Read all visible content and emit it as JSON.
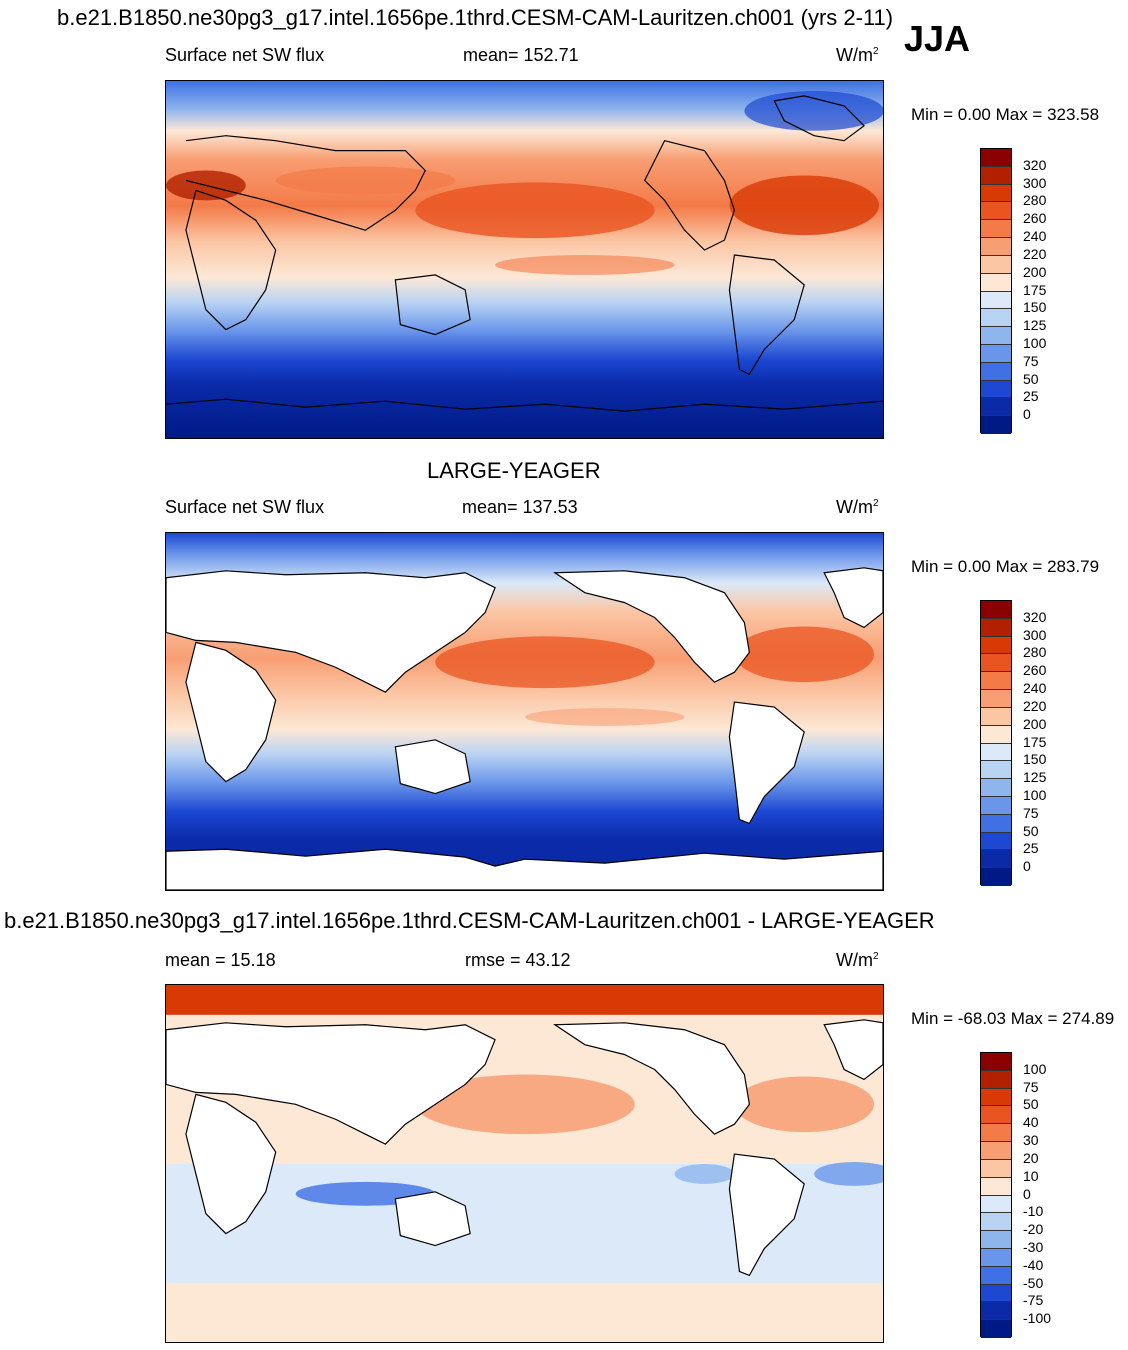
{
  "header": {
    "title": "b.e21.B1850.ne30pg3_g17.intel.1656pe.1thrd.CESM-CAM-Lauritzen.ch001 (yrs 2-11)",
    "season": "JJA"
  },
  "panel1": {
    "variable": "Surface net SW flux",
    "stat": "mean= 152.71",
    "units_base": "W/m",
    "units_exp": "2",
    "minmax": "Min =    0.00 Max = 323.58",
    "colorbar_labels": [
      "320",
      "300",
      "280",
      "260",
      "240",
      "220",
      "200",
      "175",
      "150",
      "125",
      "100",
      "75",
      "50",
      "25",
      "0"
    ]
  },
  "panel2": {
    "title": "LARGE-YEAGER",
    "variable": "Surface net SW flux",
    "stat": "mean= 137.53",
    "units_base": "W/m",
    "units_exp": "2",
    "minmax": "Min =    0.00 Max = 283.79",
    "colorbar_labels": [
      "320",
      "300",
      "280",
      "260",
      "240",
      "220",
      "200",
      "175",
      "150",
      "125",
      "100",
      "75",
      "50",
      "25",
      "0"
    ]
  },
  "panel3": {
    "title": "b.e21.B1850.ne30pg3_g17.intel.1656pe.1thrd.CESM-CAM-Lauritzen.ch001 - LARGE-YEAGER",
    "stat_left": "mean =  15.18",
    "stat_mid": "rmse =  43.12",
    "units_base": "W/m",
    "units_exp": "2",
    "minmax": "Min = -68.03 Max = 274.89",
    "colorbar_labels": [
      "100",
      "75",
      "50",
      "40",
      "30",
      "20",
      "10",
      "0",
      "-10",
      "-20",
      "-30",
      "-40",
      "-50",
      "-75",
      "-100"
    ]
  },
  "colors": {
    "abs_scale": [
      "#8b0000",
      "#b22000",
      "#d93a05",
      "#ea5420",
      "#f47a48",
      "#f89e73",
      "#fbc6a4",
      "#fde8d6",
      "#dce9f8",
      "#b9d3f3",
      "#8fb5ed",
      "#6a96ea",
      "#3f70e4",
      "#1c48d2",
      "#0a2aa8",
      "#001a85"
    ],
    "diff_scale": [
      "#8b0000",
      "#b22000",
      "#d93a05",
      "#ea5420",
      "#f47a48",
      "#f89e73",
      "#fbc6a4",
      "#fde8d6",
      "#dce9f8",
      "#b9d3f3",
      "#8fb5ed",
      "#6a96ea",
      "#3f70e4",
      "#1c48d2",
      "#0a2aa8",
      "#001a85"
    ]
  },
  "chart_data": [
    {
      "type": "heatmap",
      "title": "b.e21.B1850.ne30pg3_g17.intel.1656pe.1thrd.CESM-CAM-Lauritzen.ch001 (yrs 2-11)",
      "variable": "Surface net SW flux",
      "season": "JJA",
      "units": "W/m2",
      "mean": 152.71,
      "min": 0.0,
      "max": 323.58,
      "contour_levels": [
        0,
        25,
        50,
        75,
        100,
        125,
        150,
        175,
        200,
        220,
        240,
        260,
        280,
        300,
        320
      ],
      "land_masked": false
    },
    {
      "type": "heatmap",
      "title": "LARGE-YEAGER",
      "variable": "Surface net SW flux",
      "season": "JJA",
      "units": "W/m2",
      "mean": 137.53,
      "min": 0.0,
      "max": 283.79,
      "contour_levels": [
        0,
        25,
        50,
        75,
        100,
        125,
        150,
        175,
        200,
        220,
        240,
        260,
        280,
        300,
        320
      ],
      "land_masked": true
    },
    {
      "type": "heatmap",
      "title": "b.e21.B1850.ne30pg3_g17.intel.1656pe.1thrd.CESM-CAM-Lauritzen.ch001 - LARGE-YEAGER",
      "season": "JJA",
      "units": "W/m2",
      "mean": 15.18,
      "rmse": 43.12,
      "min": -68.03,
      "max": 274.89,
      "contour_levels": [
        -100,
        -75,
        -50,
        -40,
        -30,
        -20,
        -10,
        0,
        10,
        20,
        30,
        40,
        50,
        75,
        100
      ],
      "land_masked": true
    }
  ]
}
